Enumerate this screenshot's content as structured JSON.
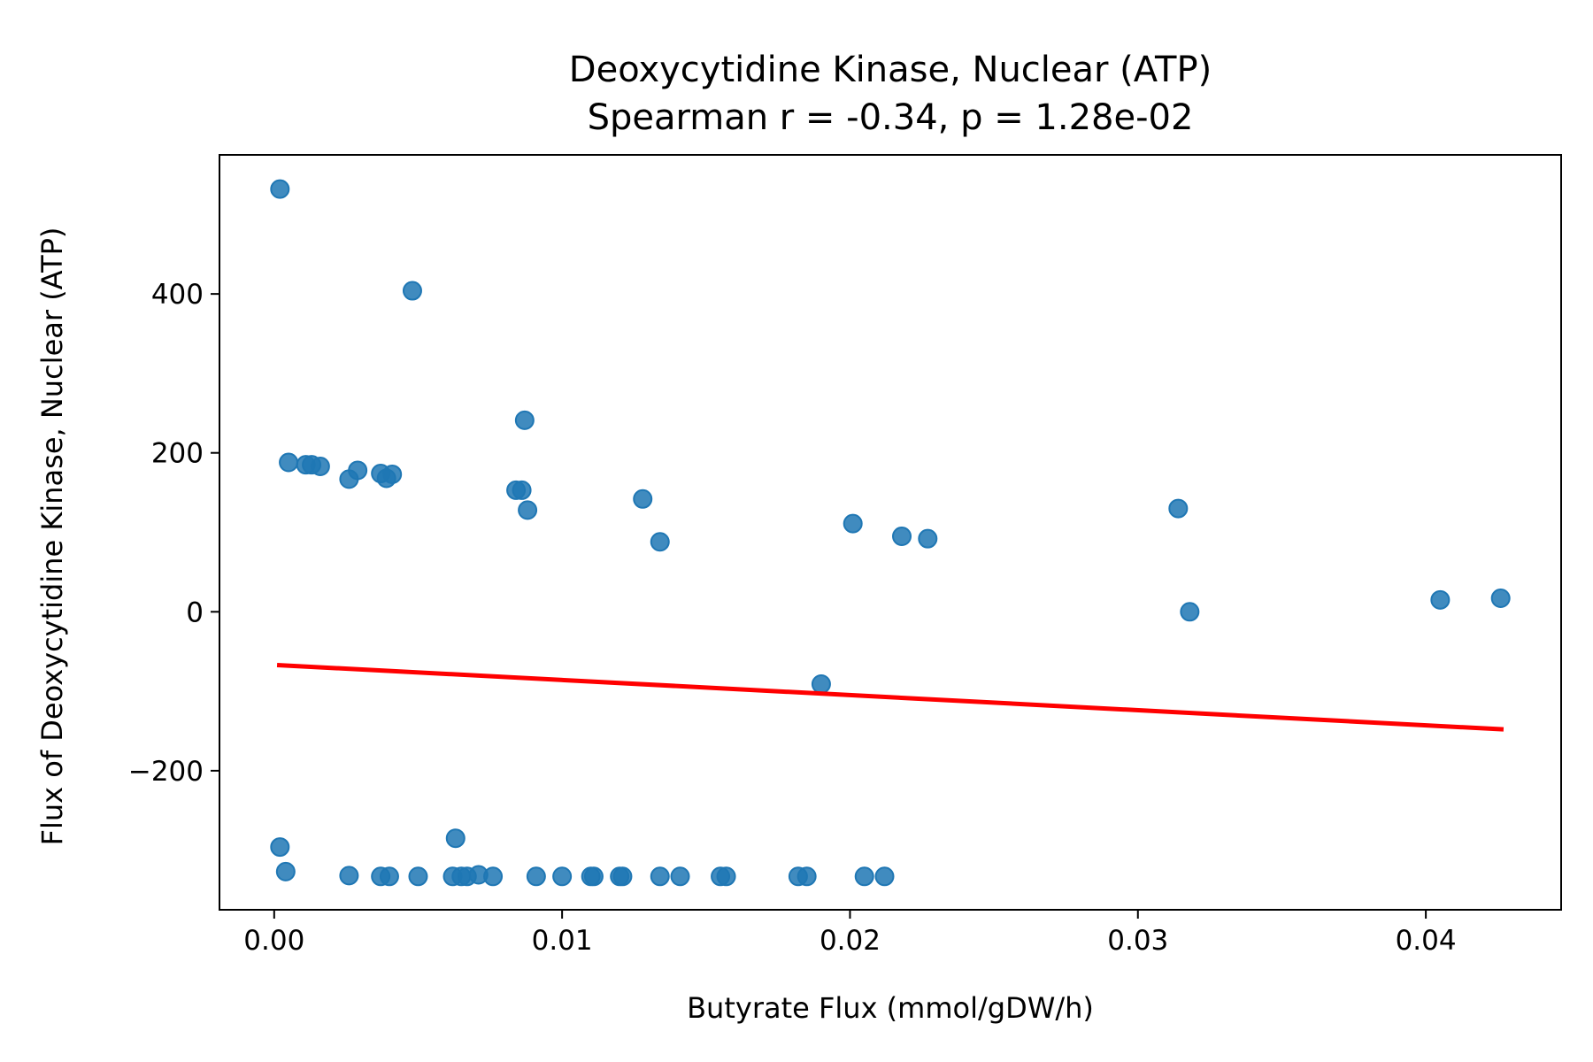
{
  "chart_data": {
    "type": "scatter",
    "title": "Deoxycytidine Kinase, Nuclear (ATP)",
    "subtitle": "Spearman r = -0.34, p = 1.28e-02",
    "xlabel": "Butyrate Flux (mmol/gDW/h)",
    "ylabel": "Flux of Deoxycytidine Kinase, Nuclear (ATP)",
    "xlim": [
      -0.0019,
      0.0447
    ],
    "ylim": [
      -375,
      575
    ],
    "x_ticks": [
      0.0,
      0.01,
      0.02,
      0.03,
      0.04
    ],
    "x_tick_labels": [
      "0.00",
      "0.01",
      "0.02",
      "0.03",
      "0.04"
    ],
    "y_ticks": [
      -200,
      0,
      200,
      400
    ],
    "y_tick_labels": [
      "−200",
      "0",
      "200",
      "400"
    ],
    "grid": false,
    "legend": "none",
    "colors": {
      "points": "#1f77b4",
      "trend": "#ff0000",
      "axes": "#000000"
    },
    "points": [
      {
        "x": 0.0002,
        "y": 532
      },
      {
        "x": 0.0048,
        "y": 404
      },
      {
        "x": 0.0087,
        "y": 241
      },
      {
        "x": 0.0005,
        "y": 188
      },
      {
        "x": 0.0011,
        "y": 185
      },
      {
        "x": 0.0013,
        "y": 185
      },
      {
        "x": 0.0016,
        "y": 183
      },
      {
        "x": 0.0029,
        "y": 178
      },
      {
        "x": 0.0026,
        "y": 167
      },
      {
        "x": 0.0037,
        "y": 174
      },
      {
        "x": 0.0039,
        "y": 168
      },
      {
        "x": 0.0041,
        "y": 173
      },
      {
        "x": 0.0084,
        "y": 153
      },
      {
        "x": 0.0086,
        "y": 153
      },
      {
        "x": 0.0088,
        "y": 128
      },
      {
        "x": 0.0128,
        "y": 142
      },
      {
        "x": 0.0134,
        "y": 88
      },
      {
        "x": 0.0201,
        "y": 111
      },
      {
        "x": 0.0218,
        "y": 95
      },
      {
        "x": 0.0227,
        "y": 92
      },
      {
        "x": 0.0314,
        "y": 130
      },
      {
        "x": 0.0318,
        "y": 0
      },
      {
        "x": 0.0405,
        "y": 15
      },
      {
        "x": 0.0426,
        "y": 17
      },
      {
        "x": 0.019,
        "y": -91
      },
      {
        "x": 0.0002,
        "y": -296
      },
      {
        "x": 0.0063,
        "y": -285
      },
      {
        "x": 0.0004,
        "y": -327
      },
      {
        "x": 0.0026,
        "y": -332
      },
      {
        "x": 0.0037,
        "y": -333
      },
      {
        "x": 0.004,
        "y": -333
      },
      {
        "x": 0.005,
        "y": -333
      },
      {
        "x": 0.0062,
        "y": -333
      },
      {
        "x": 0.0065,
        "y": -333
      },
      {
        "x": 0.0067,
        "y": -333
      },
      {
        "x": 0.0071,
        "y": -331
      },
      {
        "x": 0.0076,
        "y": -333
      },
      {
        "x": 0.0091,
        "y": -333
      },
      {
        "x": 0.01,
        "y": -333
      },
      {
        "x": 0.011,
        "y": -333
      },
      {
        "x": 0.0111,
        "y": -333
      },
      {
        "x": 0.012,
        "y": -333
      },
      {
        "x": 0.0121,
        "y": -333
      },
      {
        "x": 0.0134,
        "y": -333
      },
      {
        "x": 0.0141,
        "y": -333
      },
      {
        "x": 0.0155,
        "y": -333
      },
      {
        "x": 0.0157,
        "y": -333
      },
      {
        "x": 0.0182,
        "y": -333
      },
      {
        "x": 0.0185,
        "y": -333
      },
      {
        "x": 0.0205,
        "y": -333
      },
      {
        "x": 0.0212,
        "y": -333
      }
    ],
    "trend_line": {
      "x": [
        0.0001,
        0.0427
      ],
      "y": [
        -67,
        -148
      ]
    }
  }
}
